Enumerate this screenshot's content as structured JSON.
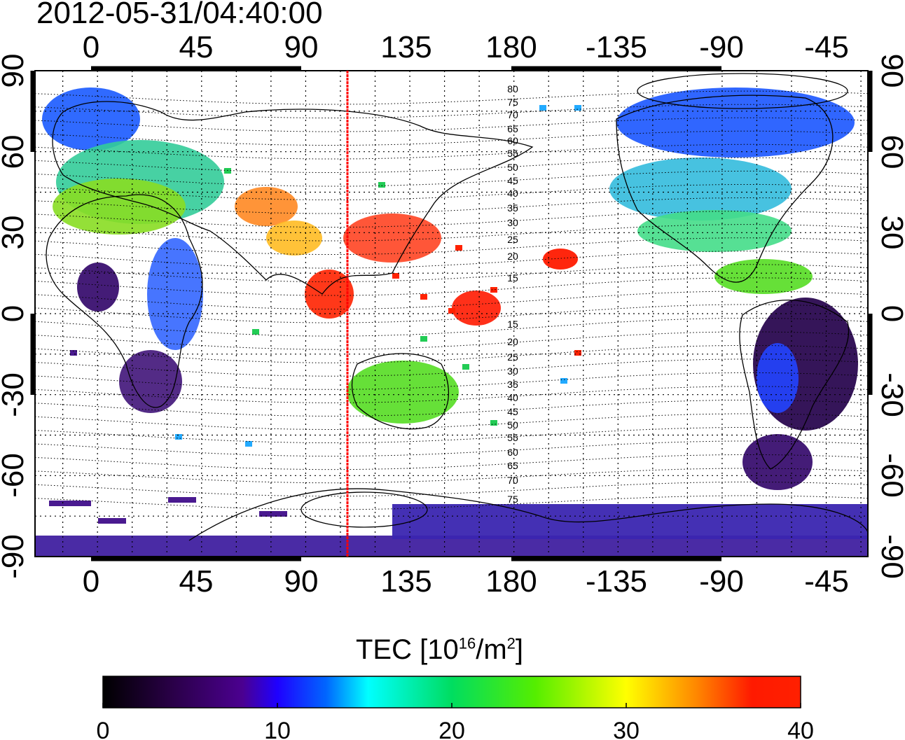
{
  "header": {
    "timestamp": "2012-05-31/04:40:00"
  },
  "map": {
    "projection": "equirectangular",
    "lon_ticks_top": [
      "0",
      "45",
      "90",
      "135",
      "180",
      "-135",
      "-90",
      "-45"
    ],
    "lon_ticks_bottom": [
      "0",
      "45",
      "90",
      "135",
      "180",
      "-135",
      "-90",
      "-45"
    ],
    "lat_ticks_left": [
      "90",
      "60",
      "30",
      "0",
      "-30",
      "-60",
      "-90"
    ],
    "lat_ticks_right": [
      "90",
      "60",
      "30",
      "0",
      "-30",
      "-60",
      "-90"
    ],
    "marker_line": {
      "longitude": 110,
      "color": "#ff0000"
    },
    "contour_labels": [
      "80",
      "75",
      "70",
      "65",
      "60",
      "55",
      "50",
      "45",
      "40",
      "35",
      "30",
      "25",
      "20",
      "15",
      "15",
      "20",
      "25",
      "30",
      "35",
      "40",
      "45",
      "50",
      "55",
      "60",
      "65",
      "70",
      "75"
    ],
    "coastline_color": "#000000"
  },
  "colorbar": {
    "title_prefix": "TEC  [10",
    "title_sup1": "16",
    "title_mid": "/m",
    "title_sup2": "2",
    "title_suffix": "]",
    "min": 0,
    "max": 40,
    "tick_labels": [
      "0",
      "10",
      "20",
      "30",
      "40"
    ],
    "colors": [
      "#000000",
      "#2a0048",
      "#4b0090",
      "#1f00ff",
      "#0066ff",
      "#00ffff",
      "#00dd60",
      "#55ee00",
      "#ffff00",
      "#ff8800",
      "#ff1a00"
    ]
  }
}
